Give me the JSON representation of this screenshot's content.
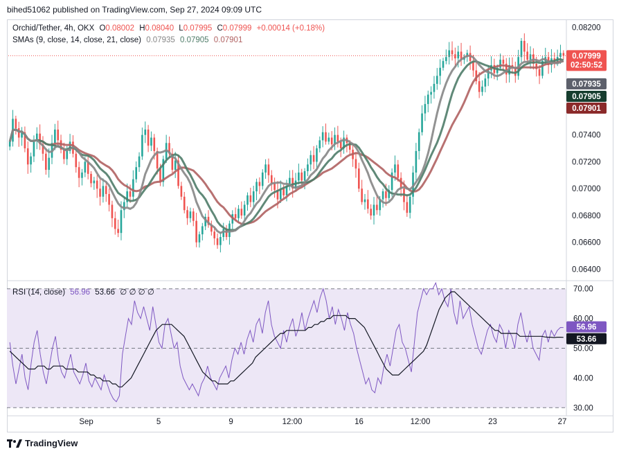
{
  "header": {
    "publish_line": "bihed51062 published on TradingView.com, Sep 27, 2024 09:09 UTC"
  },
  "price_legend": {
    "symbol": "Orchid/Tether, 4h, OKX",
    "o_label": "O",
    "o_value": "0.08002",
    "h_label": "H",
    "h_value": "0.08040",
    "l_label": "L",
    "l_value": "0.07995",
    "c_label": "C",
    "c_value": "0.07999",
    "change": "+0.00014 (+0.18%)",
    "sma_label": "SMAs (9, close, 14, close, 21, close)",
    "sma_values": [
      "0.07935",
      "0.07905",
      "0.07901"
    ]
  },
  "rsi_legend": {
    "label": "RSI (14, close)",
    "value1": "56.96",
    "value2": "53.66",
    "extras": "∅ ∅ ∅ ∅"
  },
  "badges": {
    "price": "0.07999",
    "countdown": "02:50:52",
    "sma9": "0.07935",
    "sma14": "0.07905",
    "sma21": "0.07901",
    "rsi": "56.96",
    "rsi_ma": "53.66"
  },
  "footer": {
    "brand": "TradingView"
  },
  "colors": {
    "up": "#26a69a",
    "down": "#ef5350",
    "sma9": "#868686",
    "sma14": "#4f7c69",
    "sma21": "#b06262",
    "rsi": "#7e57c2",
    "rsi_ma": "#131722",
    "rsi_band": "#ede7f6"
  },
  "chart_data": [
    {
      "type": "candlestick",
      "title": "Orchid/Tether, 4h, OKX",
      "y_ticks": [
        "0.08200",
        "0.07400",
        "0.07200",
        "0.07000",
        "0.06800",
        "0.06600",
        "0.06400"
      ],
      "x_ticks": [
        "Sep",
        "5",
        "9",
        "12:00",
        "16",
        "12:00",
        "23",
        "27"
      ],
      "ylim": [
        0.0632,
        0.0826
      ],
      "close": [
        0.0735,
        0.0752,
        0.0745,
        0.0738,
        0.0742,
        0.073,
        0.0718,
        0.0724,
        0.0736,
        0.0741,
        0.0733,
        0.0726,
        0.0714,
        0.0723,
        0.0734,
        0.0744,
        0.0736,
        0.0729,
        0.0722,
        0.0728,
        0.0735,
        0.0726,
        0.0716,
        0.0708,
        0.0712,
        0.072,
        0.0711,
        0.0704,
        0.0706,
        0.07,
        0.0694,
        0.0702,
        0.0696,
        0.0688,
        0.0678,
        0.067,
        0.0667,
        0.0684,
        0.069,
        0.0698,
        0.0694,
        0.0707,
        0.0716,
        0.0724,
        0.074,
        0.0744,
        0.0732,
        0.0738,
        0.0728,
        0.0715,
        0.0705,
        0.0722,
        0.0734,
        0.0726,
        0.0714,
        0.0721,
        0.0702,
        0.0694,
        0.0684,
        0.0678,
        0.0683,
        0.0676,
        0.066,
        0.0666,
        0.0672,
        0.0679,
        0.0673,
        0.0668,
        0.0663,
        0.0658,
        0.0664,
        0.067,
        0.0664,
        0.0674,
        0.0681,
        0.0678,
        0.0685,
        0.068,
        0.0688,
        0.0695,
        0.069,
        0.0698,
        0.0705,
        0.0702,
        0.0712,
        0.0718,
        0.071,
        0.0704,
        0.0699,
        0.0692,
        0.07,
        0.0695,
        0.0702,
        0.0708,
        0.07,
        0.0706,
        0.0712,
        0.0706,
        0.0713,
        0.0718,
        0.0725,
        0.072,
        0.073,
        0.0736,
        0.0742,
        0.0735,
        0.0738,
        0.0733,
        0.074,
        0.0735,
        0.073,
        0.0738,
        0.0734,
        0.0729,
        0.0722,
        0.0715,
        0.07,
        0.069,
        0.0692,
        0.0685,
        0.068,
        0.0688,
        0.0684,
        0.0692,
        0.0698,
        0.0693,
        0.0699,
        0.0712,
        0.0718,
        0.0708,
        0.07,
        0.069,
        0.0682,
        0.0694,
        0.0712,
        0.0728,
        0.0742,
        0.0756,
        0.0763,
        0.077,
        0.0772,
        0.0778,
        0.0784,
        0.079,
        0.0795,
        0.0798,
        0.0803,
        0.08,
        0.0797,
        0.0802,
        0.0796,
        0.0798,
        0.0801,
        0.0795,
        0.0788,
        0.078,
        0.0772,
        0.0776,
        0.0782,
        0.0788,
        0.0792,
        0.0786,
        0.079,
        0.0796,
        0.0793,
        0.0785,
        0.0792,
        0.079,
        0.0784,
        0.0798,
        0.081,
        0.0802,
        0.0796,
        0.08,
        0.0793,
        0.0789,
        0.0784,
        0.0795,
        0.0798,
        0.0792,
        0.0797,
        0.0794,
        0.0798,
        0.0801,
        0.0799
      ]
    },
    {
      "type": "line",
      "title": "RSI (14, close)",
      "y_ticks": [
        "70.00",
        "60.00",
        "50.00",
        "40.00",
        "30.00"
      ],
      "ylim": [
        27.5,
        72.5
      ],
      "bands": [
        30,
        50,
        70
      ],
      "series": [
        {
          "name": "RSI",
          "values": [
            52,
            44,
            38,
            43,
            48,
            40,
            36,
            45,
            52,
            56,
            48,
            42,
            38,
            44,
            50,
            54,
            46,
            42,
            40,
            44,
            48,
            42,
            40,
            38,
            41,
            45,
            39,
            37,
            40,
            38,
            36,
            41,
            38,
            35,
            33,
            32,
            34,
            48,
            54,
            60,
            58,
            66,
            62,
            60,
            64,
            60,
            56,
            64,
            58,
            52,
            50,
            58,
            60,
            55,
            50,
            52,
            44,
            40,
            38,
            36,
            38,
            36,
            34,
            38,
            40,
            44,
            40,
            38,
            36,
            40,
            42,
            44,
            40,
            46,
            50,
            48,
            52,
            48,
            53,
            56,
            52,
            58,
            60,
            55,
            62,
            66,
            58,
            54,
            52,
            50,
            56,
            52,
            57,
            60,
            54,
            57,
            62,
            56,
            60,
            63,
            66,
            62,
            67,
            70,
            66,
            60,
            64,
            58,
            63,
            60,
            56,
            62,
            58,
            55,
            50,
            46,
            42,
            38,
            40,
            36,
            35,
            40,
            38,
            44,
            48,
            44,
            50,
            56,
            58,
            52,
            50,
            46,
            42,
            52,
            62,
            66,
            70,
            68,
            70,
            70,
            72,
            68,
            70,
            66,
            64,
            70,
            62,
            58,
            66,
            60,
            62,
            64,
            58,
            54,
            50,
            48,
            52,
            56,
            58,
            54,
            52,
            58,
            56,
            50,
            56,
            54,
            50,
            58,
            62,
            56,
            52,
            56,
            50,
            48,
            46,
            54,
            56,
            52,
            56,
            54,
            56,
            57,
            56.96
          ]
        },
        {
          "name": "RSI MA",
          "values": [
            49,
            48,
            47,
            46,
            45,
            44,
            43,
            43,
            43,
            44,
            44,
            44,
            43,
            43,
            44,
            44,
            44,
            44,
            43,
            43,
            43,
            43,
            42,
            42,
            42,
            42,
            41,
            41,
            40,
            40,
            39,
            39,
            39,
            38,
            38,
            37,
            37,
            38,
            39,
            40,
            42,
            44,
            46,
            48,
            50,
            52,
            54,
            56,
            57,
            58,
            58,
            58,
            58,
            57,
            56,
            55,
            54,
            52,
            50,
            48,
            46,
            44,
            42,
            41,
            40,
            39,
            39,
            38,
            38,
            38,
            38,
            39,
            39,
            40,
            41,
            42,
            43,
            44,
            45,
            47,
            48,
            49,
            50,
            51,
            52,
            53,
            54,
            55,
            55,
            56,
            56,
            56,
            56,
            56,
            56,
            56,
            57,
            57,
            58,
            58,
            59,
            59,
            60,
            60,
            61,
            61,
            61,
            61,
            61,
            60,
            60,
            60,
            59,
            58,
            57,
            55,
            53,
            51,
            49,
            47,
            45,
            43,
            42,
            41,
            41,
            41,
            42,
            43,
            44,
            45,
            46,
            47,
            48,
            49,
            51,
            54,
            57,
            60,
            63,
            65,
            67,
            68,
            69,
            69,
            68,
            67,
            66,
            65,
            64,
            63,
            62,
            61,
            60,
            59,
            58,
            57,
            56,
            56,
            55,
            55,
            55,
            55,
            55,
            55,
            54,
            54,
            54,
            54,
            54,
            54,
            54,
            54,
            53.8,
            53.7,
            53.7,
            53.6,
            53.7,
            53.7,
            53.66
          ]
        }
      ]
    }
  ]
}
